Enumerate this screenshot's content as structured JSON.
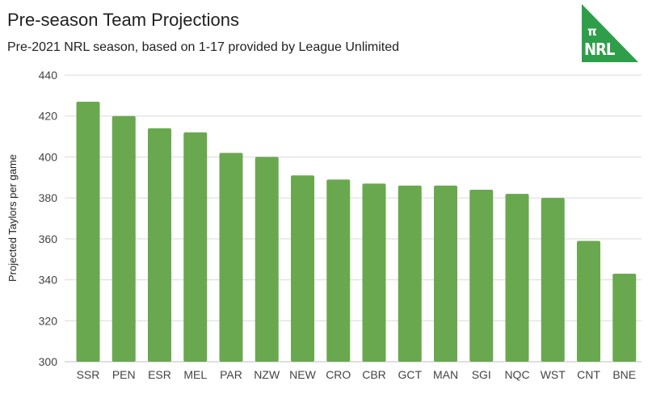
{
  "header": {
    "title": "Pre-season Team Projections",
    "subtitle": "Pre-2021 NRL season, based on 1-17 provided by League Unlimited"
  },
  "logo": {
    "symbol": "π",
    "text": "NRL",
    "color": "#2e9e4a"
  },
  "chart_data": {
    "type": "bar",
    "title": "Pre-season Team Projections",
    "subtitle": "Pre-2021 NRL season, based on 1-17 provided by League Unlimited",
    "xlabel": "",
    "ylabel": "Projected Taylors per game",
    "ylim": [
      300,
      440
    ],
    "yticks": [
      300,
      320,
      340,
      360,
      380,
      400,
      420,
      440
    ],
    "grid": true,
    "legend": "none",
    "bar_color": "#6aa84f",
    "categories": [
      "SSR",
      "PEN",
      "ESR",
      "MEL",
      "PAR",
      "NZW",
      "NEW",
      "CRO",
      "CBR",
      "GCT",
      "MAN",
      "SGI",
      "NQC",
      "WST",
      "CNT",
      "BNE"
    ],
    "values": [
      427,
      420,
      414,
      412,
      402,
      400,
      391,
      389,
      387,
      386,
      386,
      384,
      382,
      380,
      359,
      343
    ]
  }
}
